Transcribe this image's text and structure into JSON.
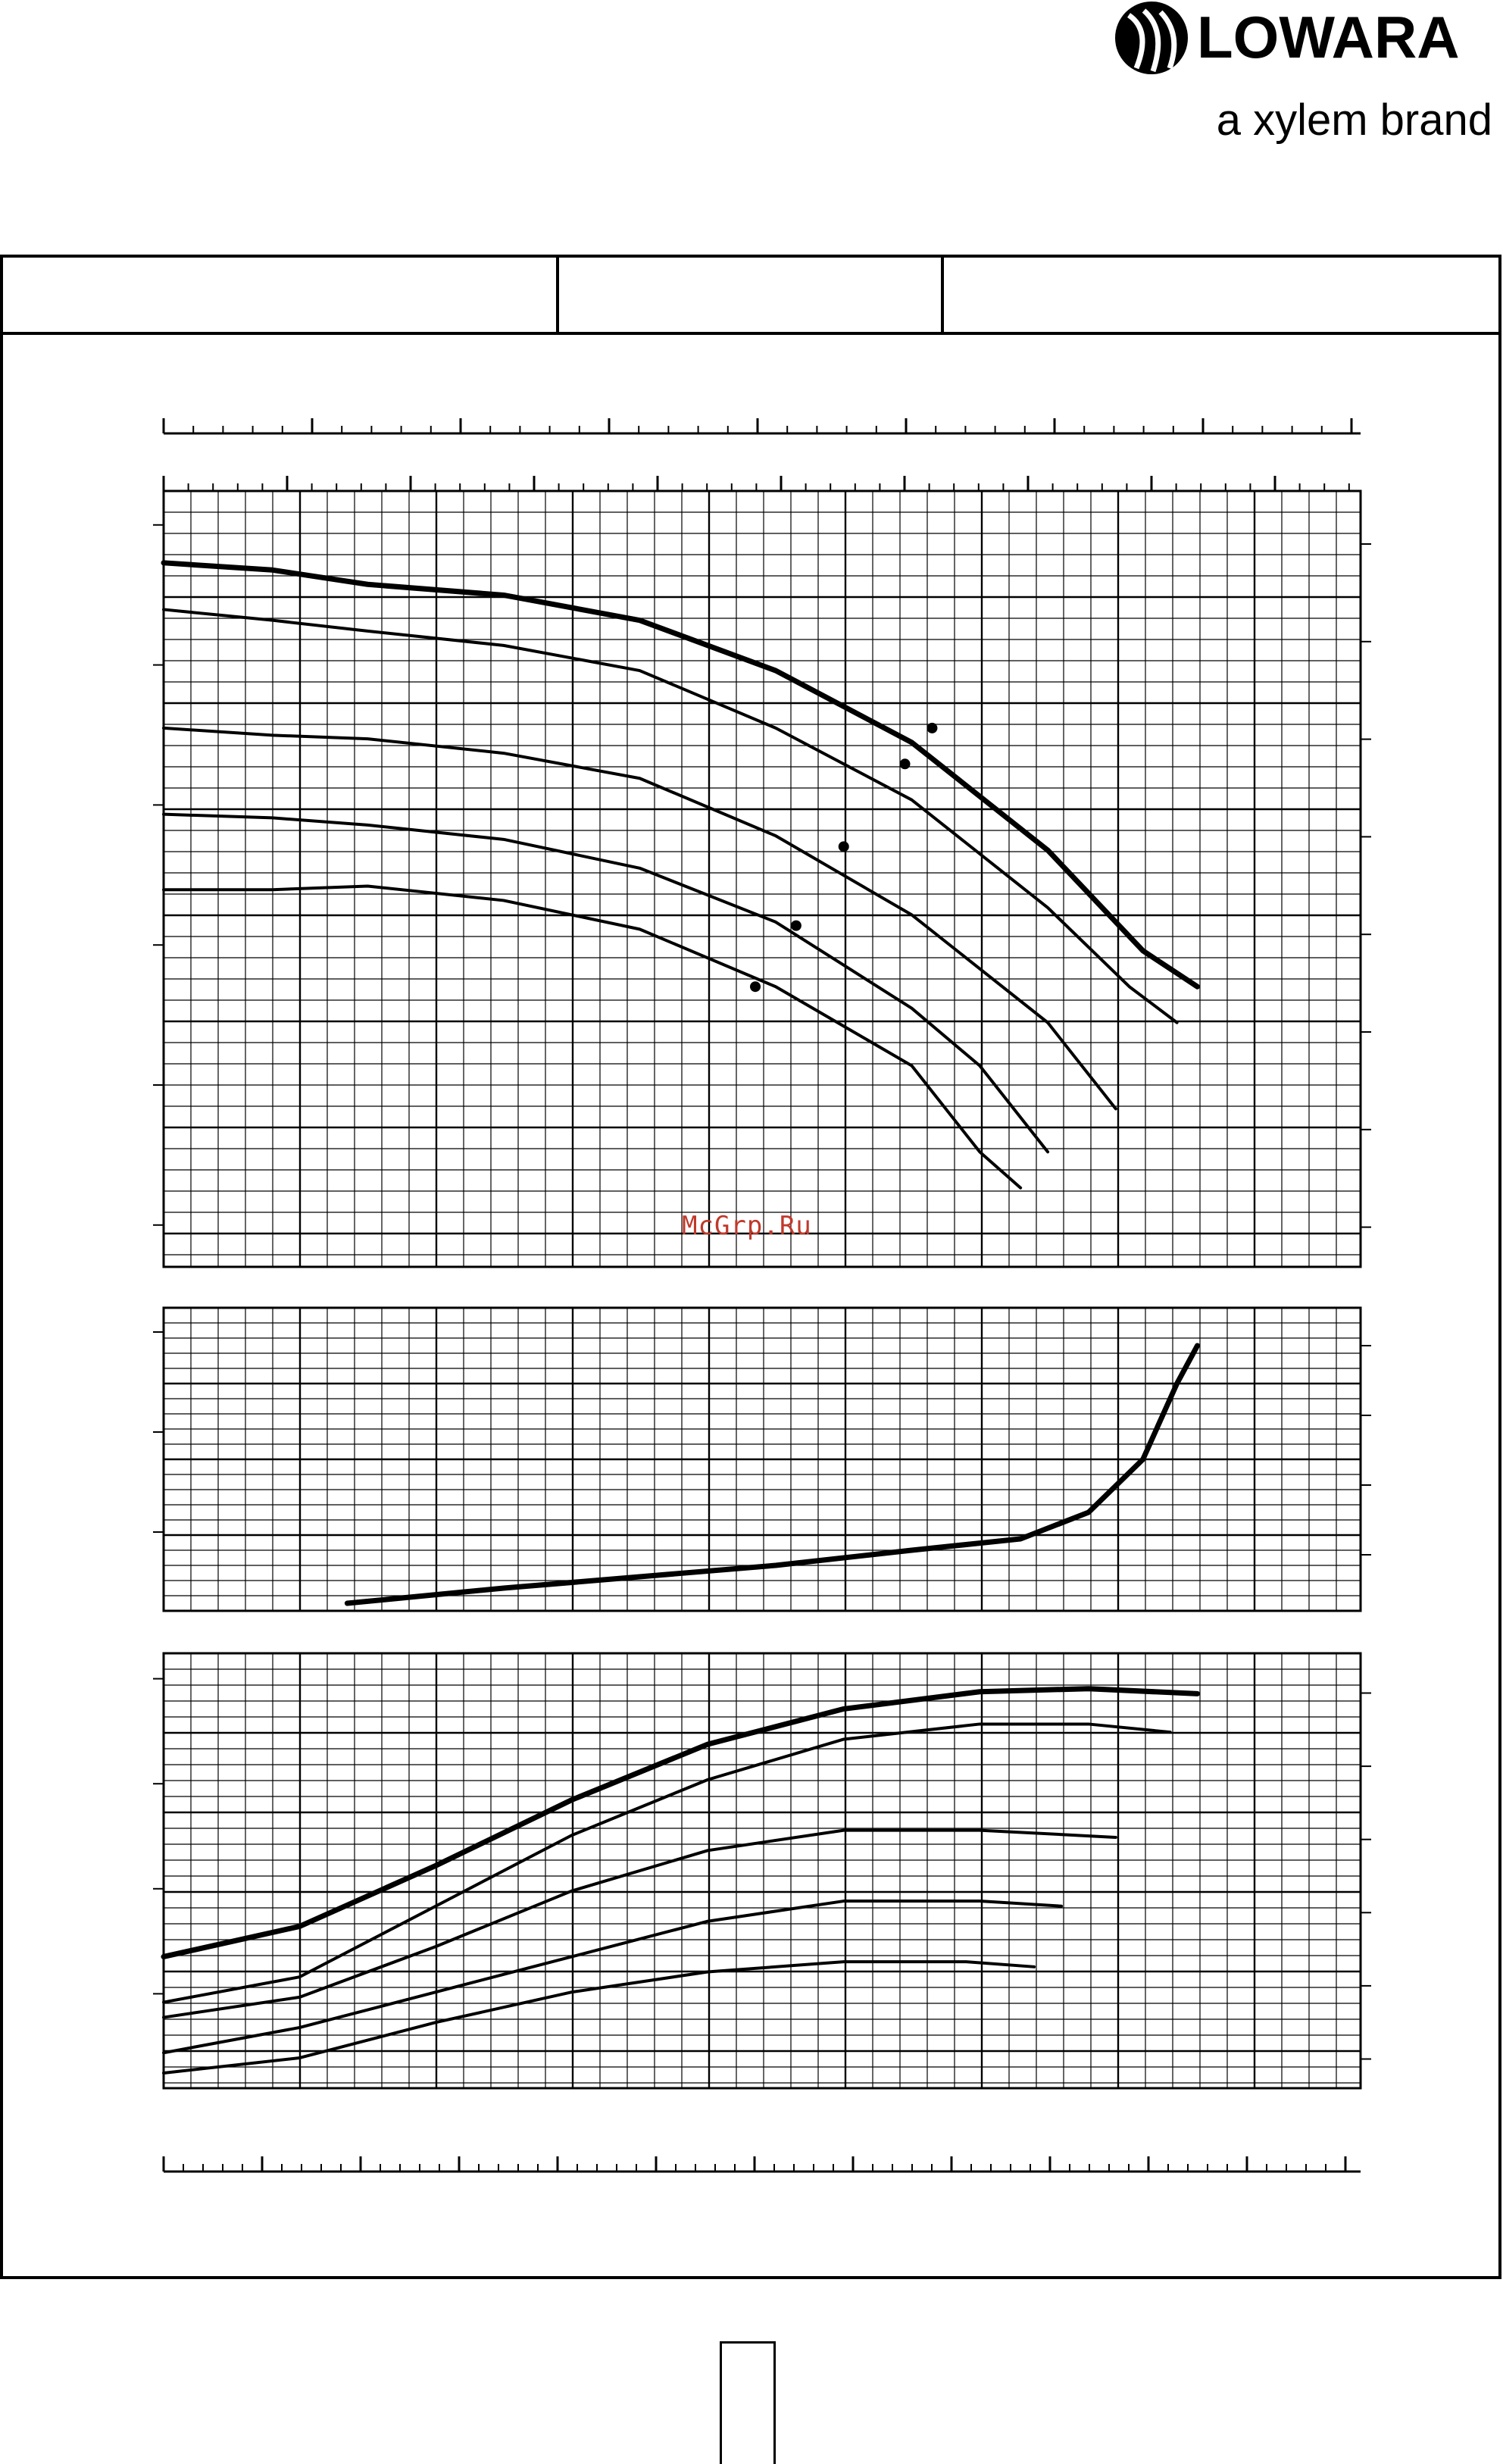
{
  "brand": {
    "name": "LOWARA",
    "tagline": "a xylem brand",
    "color": "#000000"
  },
  "watermark": "McGrp.Ru",
  "header_cells": [
    "",
    "",
    ""
  ],
  "page_number": "",
  "chart_data": [
    {
      "type": "line",
      "panel": "head",
      "title": "",
      "xlabel": "",
      "ylabel": "",
      "xlim": [
        0,
        8.8
      ],
      "ylim": [
        0,
        10.8
      ],
      "grid": true,
      "series": [
        {
          "weight": "bold",
          "x": [
            0,
            0.8,
            1.5,
            2.5,
            3.5,
            4.5,
            5.5,
            6.5,
            7.2,
            7.6
          ],
          "y": [
            9.8,
            9.7,
            9.5,
            9.35,
            9.0,
            8.3,
            7.3,
            5.8,
            4.4,
            3.9
          ]
        },
        {
          "weight": "normal",
          "x": [
            0,
            0.8,
            1.5,
            2.5,
            3.5,
            4.5,
            5.5,
            6.5,
            7.1,
            7.45
          ],
          "y": [
            9.15,
            9.0,
            8.85,
            8.65,
            8.3,
            7.5,
            6.5,
            5.0,
            3.9,
            3.4
          ]
        },
        {
          "weight": "normal",
          "x": [
            0,
            0.8,
            1.5,
            2.5,
            3.5,
            4.5,
            5.5,
            6.5,
            7.0
          ],
          "y": [
            7.5,
            7.4,
            7.35,
            7.15,
            6.8,
            6.0,
            4.9,
            3.4,
            2.2
          ]
        },
        {
          "weight": "normal",
          "x": [
            0,
            0.8,
            1.5,
            2.5,
            3.5,
            4.5,
            5.5,
            6.0,
            6.5
          ],
          "y": [
            6.3,
            6.25,
            6.15,
            5.95,
            5.55,
            4.8,
            3.6,
            2.8,
            1.6
          ]
        },
        {
          "weight": "normal",
          "x": [
            0,
            0.8,
            1.5,
            2.5,
            3.5,
            4.5,
            5.5,
            6.0,
            6.3
          ],
          "y": [
            5.25,
            5.25,
            5.3,
            5.1,
            4.7,
            3.9,
            2.8,
            1.6,
            1.1
          ]
        }
      ],
      "points": [
        {
          "x": 5.65,
          "y": 7.5
        },
        {
          "x": 5.45,
          "y": 7.0
        },
        {
          "x": 5.0,
          "y": 5.85
        },
        {
          "x": 4.65,
          "y": 4.75
        },
        {
          "x": 4.35,
          "y": 3.9
        }
      ],
      "labels": []
    },
    {
      "type": "line",
      "panel": "npsh",
      "title": "",
      "xlabel": "",
      "ylabel": "",
      "xlim": [
        0,
        8.8
      ],
      "ylim": [
        0,
        4
      ],
      "grid": true,
      "series": [
        {
          "weight": "bold",
          "x": [
            1.35,
            2.5,
            3.5,
            4.5,
            5.5,
            6.3,
            6.8,
            7.2,
            7.45,
            7.6
          ],
          "y": [
            0.1,
            0.3,
            0.45,
            0.6,
            0.8,
            0.95,
            1.3,
            2.0,
            3.0,
            3.5
          ]
        }
      ],
      "labels": []
    },
    {
      "type": "line",
      "panel": "power",
      "title": "",
      "xlabel": "",
      "ylabel": "",
      "xlim": [
        0,
        8.8
      ],
      "ylim": [
        0,
        4.3
      ],
      "grid": true,
      "series": [
        {
          "weight": "bold",
          "x": [
            0,
            1,
            2,
            3,
            4,
            5,
            6,
            6.8,
            7.6
          ],
          "y": [
            1.3,
            1.6,
            2.2,
            2.85,
            3.4,
            3.75,
            3.92,
            3.95,
            3.9
          ]
        },
        {
          "weight": "normal",
          "x": [
            0,
            1,
            2,
            3,
            4,
            5,
            6,
            6.8,
            7.4
          ],
          "y": [
            0.85,
            1.1,
            1.8,
            2.5,
            3.05,
            3.45,
            3.6,
            3.6,
            3.52
          ]
        },
        {
          "weight": "normal",
          "x": [
            0,
            1,
            2,
            3,
            4,
            5,
            6,
            7.0
          ],
          "y": [
            0.7,
            0.9,
            1.4,
            1.95,
            2.35,
            2.55,
            2.55,
            2.48
          ]
        },
        {
          "weight": "normal",
          "x": [
            0,
            1,
            2,
            3,
            4,
            5,
            6,
            6.6
          ],
          "y": [
            0.35,
            0.6,
            0.95,
            1.3,
            1.65,
            1.85,
            1.85,
            1.8
          ]
        },
        {
          "weight": "normal",
          "x": [
            0,
            1,
            2,
            3,
            4,
            5,
            5.9,
            6.4
          ],
          "y": [
            0.15,
            0.3,
            0.65,
            0.95,
            1.15,
            1.25,
            1.25,
            1.2
          ]
        }
      ],
      "labels": []
    }
  ]
}
